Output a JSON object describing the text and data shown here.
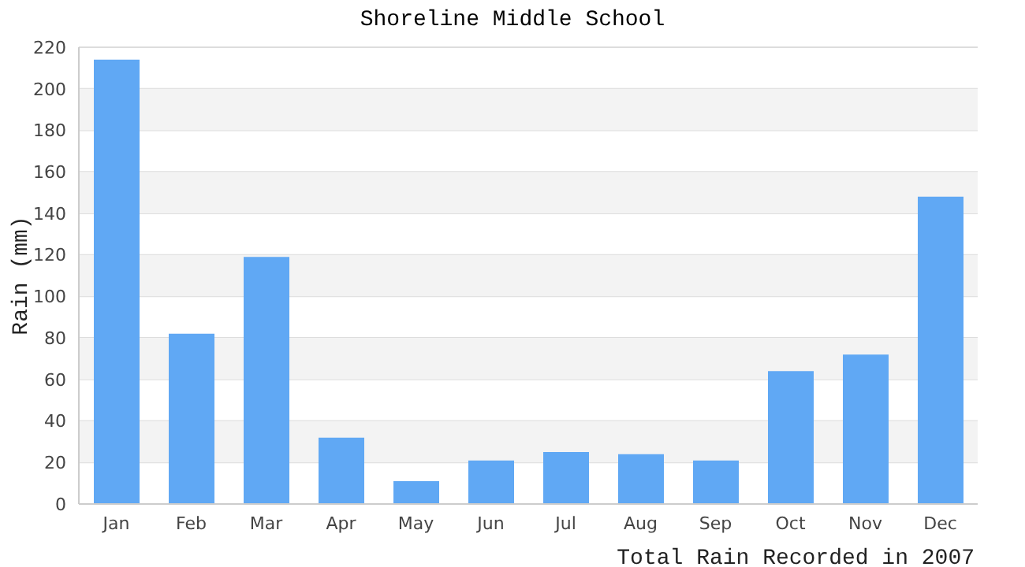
{
  "chart_data": {
    "type": "bar",
    "title": "Shoreline Middle School",
    "xlabel": "Total Rain Recorded in 2007",
    "ylabel": "Rain (mm)",
    "categories": [
      "Jan",
      "Feb",
      "Mar",
      "Apr",
      "May",
      "Jun",
      "Jul",
      "Aug",
      "Sep",
      "Oct",
      "Nov",
      "Dec"
    ],
    "values": [
      214,
      82,
      119,
      32,
      11,
      21,
      25,
      24,
      21,
      64,
      72,
      148
    ],
    "color": "#60a8f4",
    "ylim": [
      0,
      220
    ],
    "yticks": [
      0,
      20,
      40,
      60,
      80,
      100,
      120,
      140,
      160,
      180,
      200,
      220
    ],
    "grid": "y"
  }
}
